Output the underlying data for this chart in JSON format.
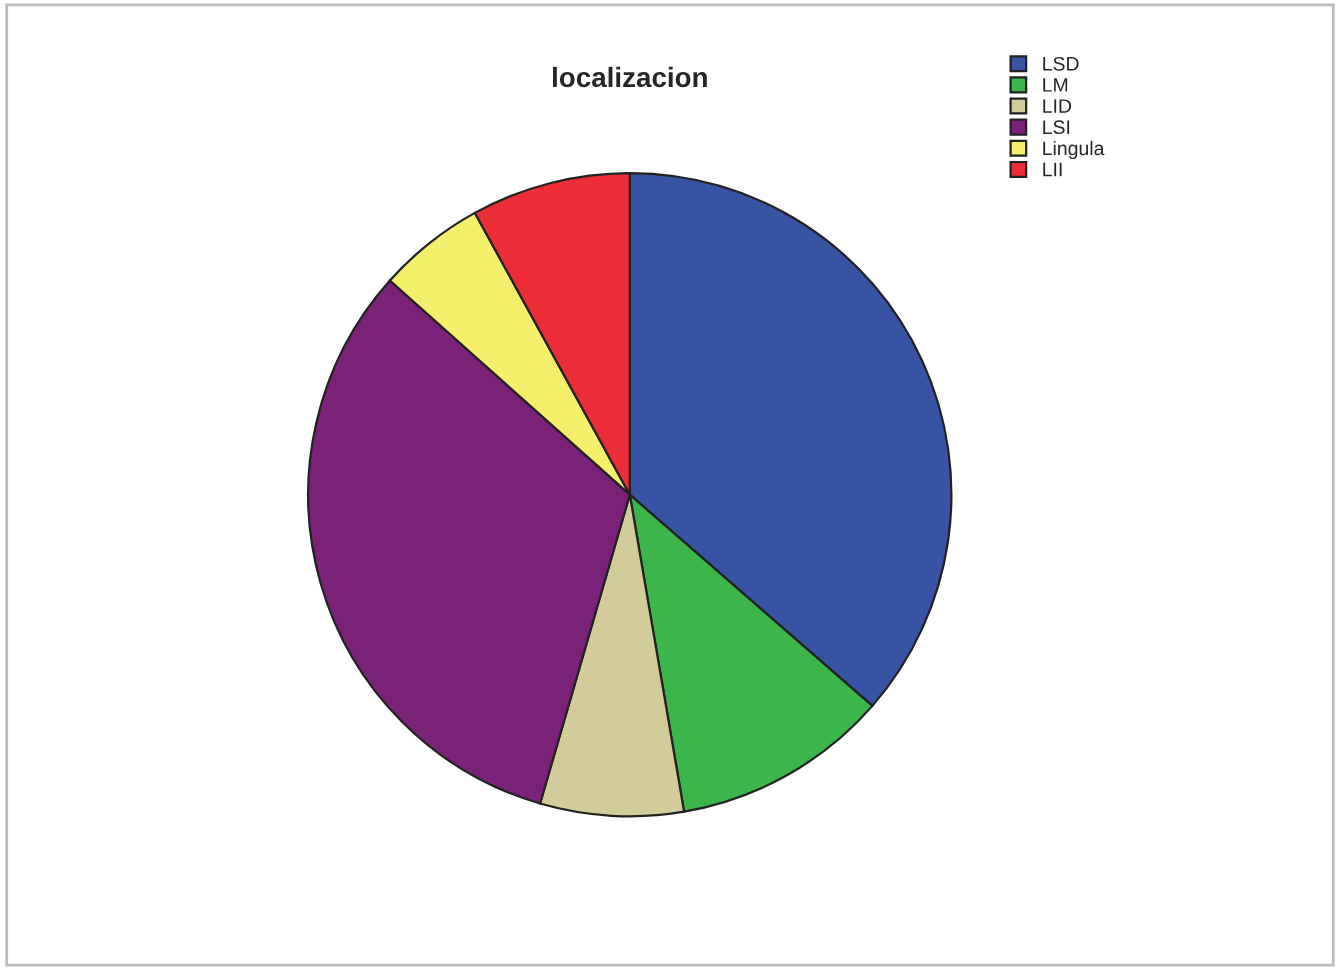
{
  "chart_data": {
    "type": "pie",
    "title": "localizacion",
    "categories": [
      "LSD",
      "LM",
      "LID",
      "LSI",
      "Lingula",
      "LII"
    ],
    "values": [
      36.4,
      10.9,
      7.2,
      32.1,
      5.4,
      8.0
    ],
    "colors": [
      "#3953a4",
      "#3cb54a",
      "#d2cc9a",
      "#7b2278",
      "#f4f06b",
      "#ed2d37"
    ],
    "legend": "top right"
  }
}
